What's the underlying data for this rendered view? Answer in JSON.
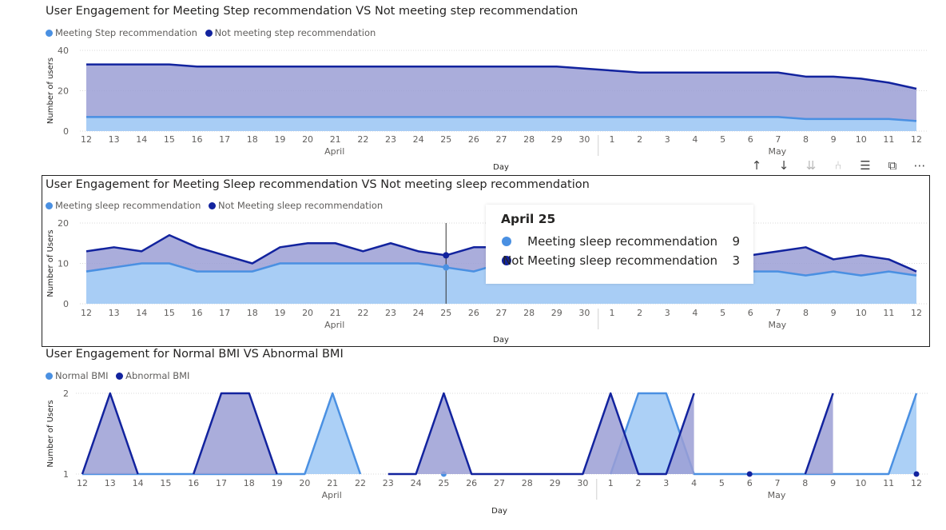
{
  "toolbar": {
    "icons": [
      "arrow-up-icon",
      "arrow-down-icon",
      "double-arrow-down-icon",
      "expand-hierarchy-icon",
      "filter-icon",
      "focus-mode-icon",
      "more-options-icon"
    ],
    "glyphs": [
      "↑",
      "↓",
      "⇊",
      "⑃",
      "☰",
      "⧉",
      "⋯"
    ]
  },
  "tooltip": {
    "title": "April 25",
    "rows": [
      {
        "label": "Meeting sleep recommendation",
        "value": "9",
        "color": "#4a90e2"
      },
      {
        "label": "Not Meeting sleep recommendation",
        "value": "3",
        "color": "#12239e"
      }
    ]
  },
  "chart_data": [
    {
      "type": "area",
      "title": "User Engagement for Meeting Step recommendation VS Not meeting step recommendation",
      "xlabel": "Day",
      "ylabel": "Number of users",
      "ylim": [
        0,
        40
      ],
      "yticks": [
        "0",
        "20",
        "40"
      ],
      "x": [
        "12",
        "13",
        "14",
        "15",
        "16",
        "17",
        "18",
        "19",
        "20",
        "21",
        "22",
        "23",
        "24",
        "25",
        "26",
        "27",
        "28",
        "29",
        "30",
        "1",
        "2",
        "3",
        "4",
        "5",
        "6",
        "7",
        "8",
        "9",
        "10",
        "11",
        "12"
      ],
      "month_labels": [
        {
          "label": "April",
          "at": 9
        },
        {
          "label": "May",
          "at": 25
        }
      ],
      "series": [
        {
          "name": "Meeting Step recommendation",
          "color": "#4a90e2",
          "fill": "#a8cdf5",
          "values": [
            7,
            7,
            7,
            7,
            7,
            7,
            7,
            7,
            7,
            7,
            7,
            7,
            7,
            7,
            7,
            7,
            7,
            7,
            7,
            7,
            7,
            7,
            7,
            7,
            7,
            7,
            6,
            6,
            6,
            6,
            5
          ]
        },
        {
          "name": "Not meeting step recommendation",
          "color": "#12239e",
          "fill": "#9b9fd5",
          "values": [
            33,
            33,
            33,
            33,
            32,
            32,
            32,
            32,
            32,
            32,
            32,
            32,
            32,
            32,
            32,
            32,
            32,
            32,
            31,
            30,
            29,
            29,
            29,
            29,
            29,
            29,
            27,
            27,
            26,
            24,
            21
          ]
        }
      ]
    },
    {
      "type": "area",
      "title": "User Engagement for Meeting Sleep recommendation VS Not meeting sleep recommendation",
      "xlabel": "Day",
      "ylabel": "Number of Users",
      "ylim": [
        0,
        20
      ],
      "yticks": [
        "0",
        "10",
        "20"
      ],
      "x": [
        "12",
        "13",
        "14",
        "15",
        "16",
        "17",
        "18",
        "19",
        "20",
        "21",
        "22",
        "23",
        "24",
        "25",
        "26",
        "27",
        "28",
        "29",
        "30",
        "1",
        "2",
        "3",
        "4",
        "5",
        "6",
        "7",
        "8",
        "9",
        "10",
        "11",
        "12"
      ],
      "month_labels": [
        {
          "label": "April",
          "at": 9
        },
        {
          "label": "May",
          "at": 25
        }
      ],
      "series": [
        {
          "name": "Meeting sleep recommendation",
          "color": "#4a90e2",
          "fill": "#a8cdf5",
          "values": [
            8,
            9,
            10,
            10,
            8,
            8,
            8,
            10,
            10,
            10,
            10,
            10,
            10,
            9,
            8,
            10,
            10,
            10,
            10,
            9,
            9,
            9,
            8,
            8,
            8,
            8,
            7,
            8,
            7,
            8,
            7
          ]
        },
        {
          "name": "Not Meeting sleep recommendation",
          "color": "#12239e",
          "fill": "#9b9fd5",
          "values": [
            13,
            14,
            13,
            17,
            14,
            12,
            10,
            14,
            15,
            15,
            13,
            15,
            13,
            12,
            14,
            14,
            14,
            14,
            14,
            13,
            13,
            13,
            12,
            12,
            12,
            13,
            14,
            11,
            12,
            11,
            8
          ]
        }
      ]
    },
    {
      "type": "area",
      "title": "User Engagement for Normal BMI VS Abnormal BMI",
      "xlabel": "Day",
      "ylabel": "Number of Users",
      "ylim": [
        1,
        2
      ],
      "yticks": [
        "1",
        "2"
      ],
      "x": [
        "12",
        "13",
        "14",
        "15",
        "16",
        "17",
        "18",
        "19",
        "20",
        "21",
        "22",
        "23",
        "24",
        "25",
        "26",
        "27",
        "28",
        "29",
        "30",
        "1",
        "2",
        "3",
        "4",
        "5",
        "6",
        "7",
        "8",
        "9",
        "10",
        "11",
        "12"
      ],
      "month_labels": [
        {
          "label": "April",
          "at": 9
        },
        {
          "label": "May",
          "at": 25
        }
      ],
      "series": [
        {
          "name": "Normal BMI",
          "color": "#4a90e2",
          "fill": "#a8cdf5",
          "values": [
            1,
            1,
            1,
            1,
            1,
            1,
            1,
            1,
            1,
            2,
            1,
            null,
            null,
            1,
            null,
            null,
            null,
            null,
            null,
            1,
            2,
            2,
            1,
            1,
            1,
            1,
            1,
            1,
            1,
            1,
            2
          ]
        },
        {
          "name": "Abnormal BMI",
          "color": "#12239e",
          "fill": "#9b9fd5",
          "values": [
            1,
            2,
            1,
            null,
            1,
            2,
            2,
            1,
            null,
            null,
            null,
            1,
            1,
            2,
            1,
            1,
            1,
            1,
            1,
            2,
            1,
            1,
            2,
            null,
            1,
            null,
            1,
            2,
            null,
            null,
            1
          ]
        }
      ]
    }
  ]
}
